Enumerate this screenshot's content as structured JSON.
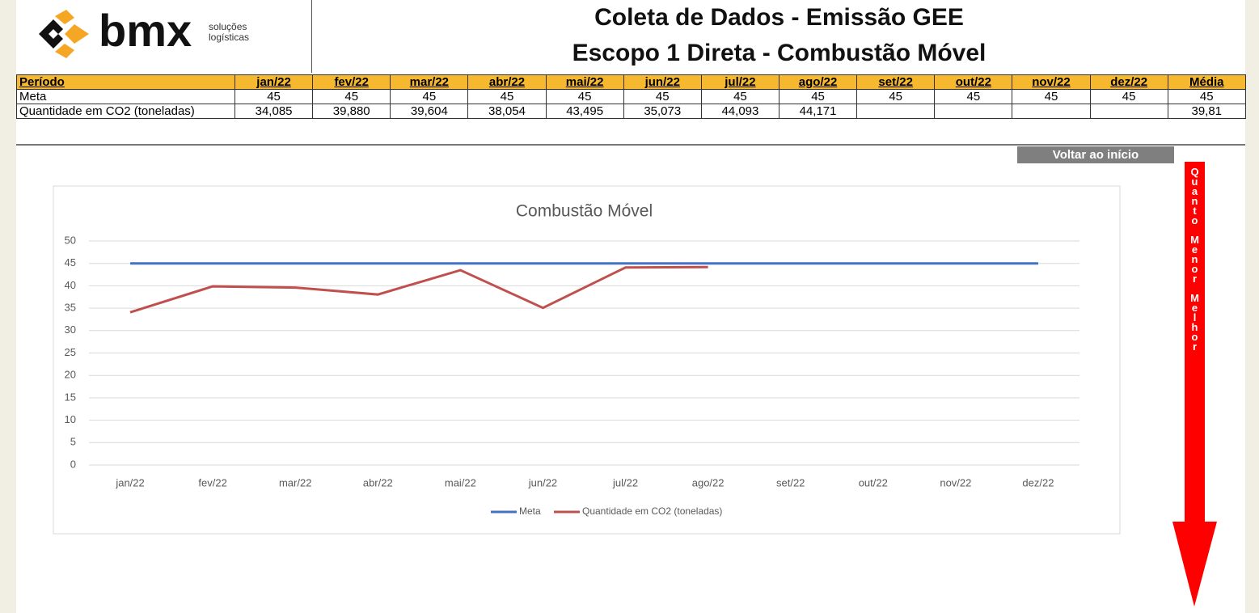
{
  "header": {
    "logo": "bmx",
    "logo_sub": [
      "soluções",
      "logísticas"
    ],
    "title": [
      "Coleta de Dados - Emissão GEE",
      "Escopo 1 Direta - Combustão Móvel"
    ]
  },
  "table": {
    "header": [
      "Período",
      "jan/22",
      "fev/22",
      "mar/22",
      "abr/22",
      "mai/22",
      "jun/22",
      "jul/22",
      "ago/22",
      "set/22",
      "out/22",
      "nov/22",
      "dez/22",
      "Média"
    ],
    "rows": [
      [
        "Meta",
        "45",
        "45",
        "45",
        "45",
        "45",
        "45",
        "45",
        "45",
        "45",
        "45",
        "45",
        "45",
        "45"
      ],
      [
        "Quantidade em CO2 (toneladas)",
        "34,085",
        "39,880",
        "39,604",
        "38,054",
        "43,495",
        "35,073",
        "44,093",
        "44,171",
        null,
        null,
        null,
        null,
        "39,81"
      ]
    ]
  },
  "button": "Voltar ao início",
  "arrow_text": "Quanto Menor Melhor",
  "chart_data": {
    "type": "line",
    "title": "Combustão Móvel",
    "categories": [
      "jan/22",
      "fev/22",
      "mar/22",
      "abr/22",
      "mai/22",
      "jun/22",
      "jul/22",
      "ago/22",
      "set/22",
      "out/22",
      "nov/22",
      "dez/22"
    ],
    "series": [
      {
        "name": "Meta",
        "color": "#4472c4",
        "values": [
          45,
          45,
          45,
          45,
          45,
          45,
          45,
          45,
          45,
          45,
          45,
          45
        ]
      },
      {
        "name": "Quantidade em CO2 (toneladas)",
        "color": "#c0504d",
        "values": [
          34.085,
          39.88,
          39.604,
          38.054,
          43.495,
          35.073,
          44.093,
          44.171,
          null,
          null,
          null,
          null
        ]
      }
    ],
    "ylim": [
      0,
      50
    ],
    "yticks": [
      0,
      5,
      10,
      15,
      20,
      25,
      30,
      35,
      40,
      45,
      50
    ],
    "grid": true,
    "legend": "bottom"
  }
}
